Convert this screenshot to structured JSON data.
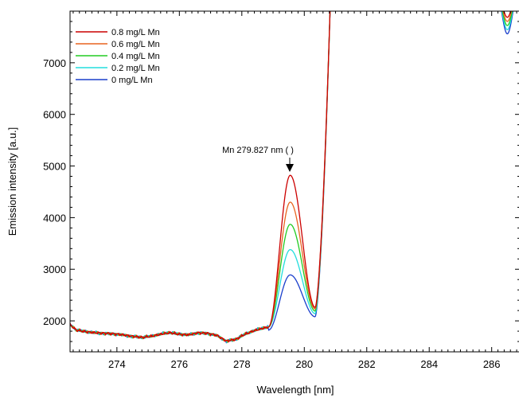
{
  "chart_data": {
    "type": "line",
    "xlabel": "Wavelength [nm]",
    "ylabel": "Emission intensity [a.u.]",
    "xlim": [
      272.5,
      286.9
    ],
    "ylim": [
      1400,
      8000
    ],
    "x_ticks": [
      274,
      276,
      278,
      280,
      282,
      284,
      286
    ],
    "y_ticks": [
      2000,
      3000,
      4000,
      5000,
      6000,
      7000
    ],
    "grid": false,
    "legend_position": "top-left",
    "annotation": {
      "text": "Mn 279.827 nm ( )",
      "x": 279.5,
      "y": 4850
    },
    "series": [
      {
        "name": "0.8 mg/L Mn",
        "color": "#cc0000",
        "peak_intensity": 4820,
        "min_intensity": 2260,
        "right_dip": 7880
      },
      {
        "name": "0.6 mg/L Mn",
        "color": "#e8641e",
        "peak_intensity": 4300,
        "min_intensity": 2230,
        "right_dip": 7800
      },
      {
        "name": "0.4 mg/L Mn",
        "color": "#22cc22",
        "peak_intensity": 3870,
        "min_intensity": 2190,
        "right_dip": 7720
      },
      {
        "name": "0.2 mg/L Mn",
        "color": "#22dddd",
        "peak_intensity": 3380,
        "min_intensity": 2140,
        "right_dip": 7640
      },
      {
        "name": "0 mg/L Mn",
        "color": "#1a3fcc",
        "peak_intensity": 2890,
        "min_intensity": 2080,
        "right_dip": 7560
      }
    ],
    "baseline_points": [
      [
        272.5,
        1930
      ],
      [
        272.7,
        1820
      ],
      [
        273.0,
        1790
      ],
      [
        273.3,
        1770
      ],
      [
        273.6,
        1760
      ],
      [
        273.9,
        1750
      ],
      [
        274.2,
        1730
      ],
      [
        274.5,
        1700
      ],
      [
        274.8,
        1680
      ],
      [
        275.1,
        1700
      ],
      [
        275.4,
        1740
      ],
      [
        275.7,
        1770
      ],
      [
        276.0,
        1740
      ],
      [
        276.3,
        1730
      ],
      [
        276.6,
        1770
      ],
      [
        276.9,
        1760
      ],
      [
        277.2,
        1720
      ],
      [
        277.5,
        1610
      ],
      [
        277.8,
        1640
      ],
      [
        278.1,
        1740
      ],
      [
        278.4,
        1810
      ],
      [
        278.7,
        1860
      ],
      [
        278.85,
        1880
      ]
    ]
  }
}
